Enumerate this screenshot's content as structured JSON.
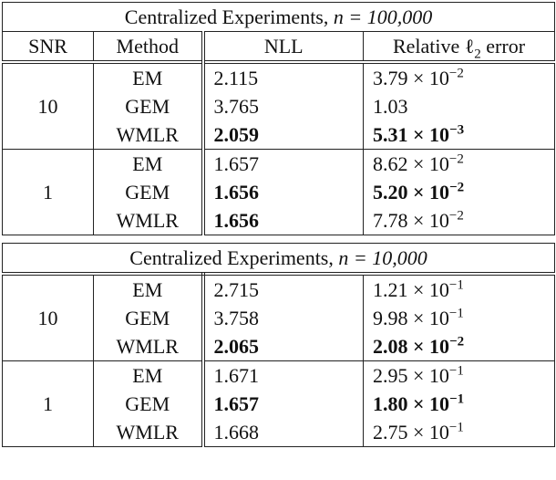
{
  "sections": [
    {
      "title": {
        "text": "Centralized Experiments,",
        "math": "n = 100,000"
      },
      "header": {
        "snr": "SNR",
        "method": "Method",
        "nll": "NLL",
        "error": {
          "text": "Relative ℓ",
          "sub": "2",
          "after": " error"
        }
      },
      "groups": [
        {
          "snr": "10",
          "rows": [
            {
              "method": "EM",
              "nll": "2.115",
              "error": {
                "base": "3.79 × 10",
                "exp": "−2"
              }
            },
            {
              "method": "GEM",
              "nll": "3.765",
              "error": {
                "base": "1.03"
              }
            },
            {
              "method": "WMLR",
              "nll": "2.059",
              "nll_bold": true,
              "error": {
                "base": "5.31 × 10",
                "exp": "−3"
              },
              "error_bold": true
            }
          ]
        },
        {
          "snr": "1",
          "rows": [
            {
              "method": "EM",
              "nll": "1.657",
              "error": {
                "base": "8.62 × 10",
                "exp": "−2"
              }
            },
            {
              "method": "GEM",
              "nll": "1.656",
              "nll_bold": true,
              "error": {
                "base": "5.20 × 10",
                "exp": "−2"
              },
              "error_bold": true
            },
            {
              "method": "WMLR",
              "nll": "1.656",
              "nll_bold": true,
              "error": {
                "base": "7.78 × 10",
                "exp": "−2"
              }
            }
          ]
        }
      ]
    },
    {
      "title": {
        "text": "Centralized Experiments,",
        "math": "n = 10,000"
      },
      "groups": [
        {
          "snr": "10",
          "rows": [
            {
              "method": "EM",
              "nll": "2.715",
              "error": {
                "base": "1.21 × 10",
                "exp": "−1"
              }
            },
            {
              "method": "GEM",
              "nll": "3.758",
              "error": {
                "base": "9.98 × 10",
                "exp": "−1"
              }
            },
            {
              "method": "WMLR",
              "nll": "2.065",
              "nll_bold": true,
              "error": {
                "base": "2.08 × 10",
                "exp": "−2"
              },
              "error_bold": true
            }
          ]
        },
        {
          "snr": "1",
          "rows": [
            {
              "method": "EM",
              "nll": "1.671",
              "error": {
                "base": "2.95 × 10",
                "exp": "−1"
              }
            },
            {
              "method": "GEM",
              "nll": "1.657",
              "nll_bold": true,
              "error": {
                "base": "1.80 × 10",
                "exp": "−1"
              },
              "error_bold": true
            },
            {
              "method": "WMLR",
              "nll": "1.668",
              "error": {
                "base": "2.75 × 10",
                "exp": "−1"
              }
            }
          ]
        }
      ]
    }
  ]
}
